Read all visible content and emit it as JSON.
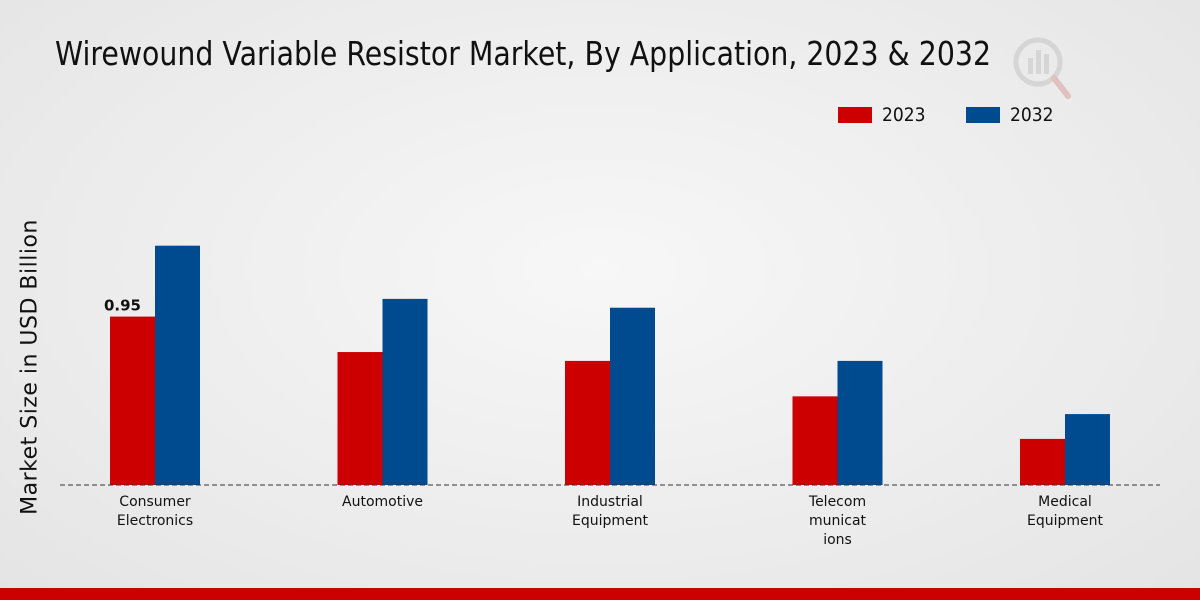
{
  "chart_data": {
    "type": "bar",
    "title": "Wirewound Variable Resistor Market, By Application, 2023 & 2032",
    "xlabel": "",
    "ylabel": "Market Size in USD Billion",
    "categories": [
      [
        "Consumer",
        "Electronics"
      ],
      [
        "Automotive"
      ],
      [
        "Industrial",
        "Equipment"
      ],
      [
        "Telecom",
        "municat",
        "ions"
      ],
      [
        "Medical",
        "Equipment"
      ]
    ],
    "series": [
      {
        "name": "2023",
        "color": "#cc0000",
        "values": [
          0.95,
          0.75,
          0.7,
          0.5,
          0.26
        ]
      },
      {
        "name": "2032",
        "color": "#004a8f",
        "values": [
          1.35,
          1.05,
          1.0,
          0.7,
          0.4
        ]
      }
    ],
    "data_labels": [
      {
        "series": 0,
        "index": 0,
        "text": "0.95"
      }
    ],
    "ylim": [
      0,
      2.2
    ],
    "grid": false,
    "legend_position": "top-right"
  },
  "colors": {
    "accent": "#cc0000",
    "bottom_bar": "#cc0000",
    "axis": "#333333"
  }
}
